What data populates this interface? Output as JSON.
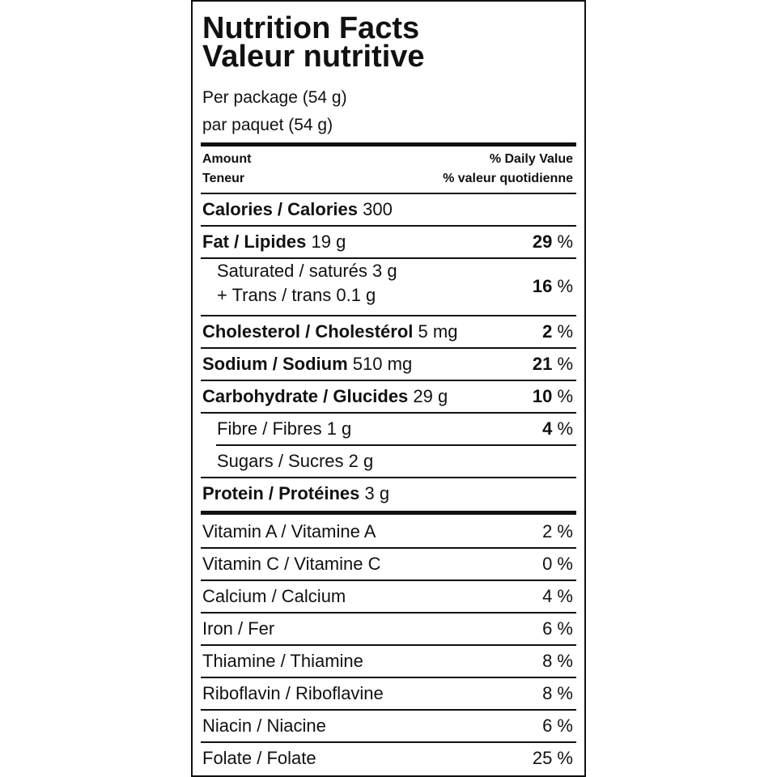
{
  "title_en": "Nutrition Facts",
  "title_fr": "Valeur nutritive",
  "serving_en": "Per package (54 g)",
  "serving_fr": "par paquet (54 g)",
  "header": {
    "amount_en": "Amount",
    "amount_fr": "Teneur",
    "dv_en": "% Daily Value",
    "dv_fr": "% valeur quotidienne"
  },
  "calories": {
    "label": "Calories / Calories",
    "value": "300"
  },
  "nutrients": [
    {
      "label": "Fat / Lipides",
      "amount": "19 g",
      "dv": "29",
      "unit": "%"
    },
    {
      "label1": "Saturated / saturés 3 g",
      "label2": "+ Trans / trans 0.1 g",
      "dv": "16",
      "unit": "%"
    },
    {
      "label": "Cholesterol / Cholestérol",
      "amount": "5 mg",
      "dv": "2",
      "unit": "%"
    },
    {
      "label": "Sodium / Sodium",
      "amount": "510 mg",
      "dv": "21",
      "unit": "%"
    },
    {
      "label": "Carbohydrate / Glucides",
      "amount": "29 g",
      "dv": "10",
      "unit": "%"
    },
    {
      "label": "Fibre / Fibres 1 g",
      "dv": "4",
      "unit": "%"
    },
    {
      "label": "Sugars / Sucres 2 g"
    },
    {
      "label": "Protein / Protéines",
      "amount": "3 g"
    }
  ],
  "vitamins": [
    {
      "label": "Vitamin A / Vitamine A",
      "dv": "2 %"
    },
    {
      "label": "Vitamin C / Vitamine C",
      "dv": "0 %"
    },
    {
      "label": "Calcium / Calcium",
      "dv": "4 %"
    },
    {
      "label": "Iron / Fer",
      "dv": "6 %"
    },
    {
      "label": "Thiamine / Thiamine",
      "dv": "8 %"
    },
    {
      "label": "Riboflavin / Riboflavine",
      "dv": "8 %"
    },
    {
      "label": "Niacin / Niacine",
      "dv": "6 %"
    },
    {
      "label": "Folate / Folate",
      "dv": "25 %"
    }
  ]
}
